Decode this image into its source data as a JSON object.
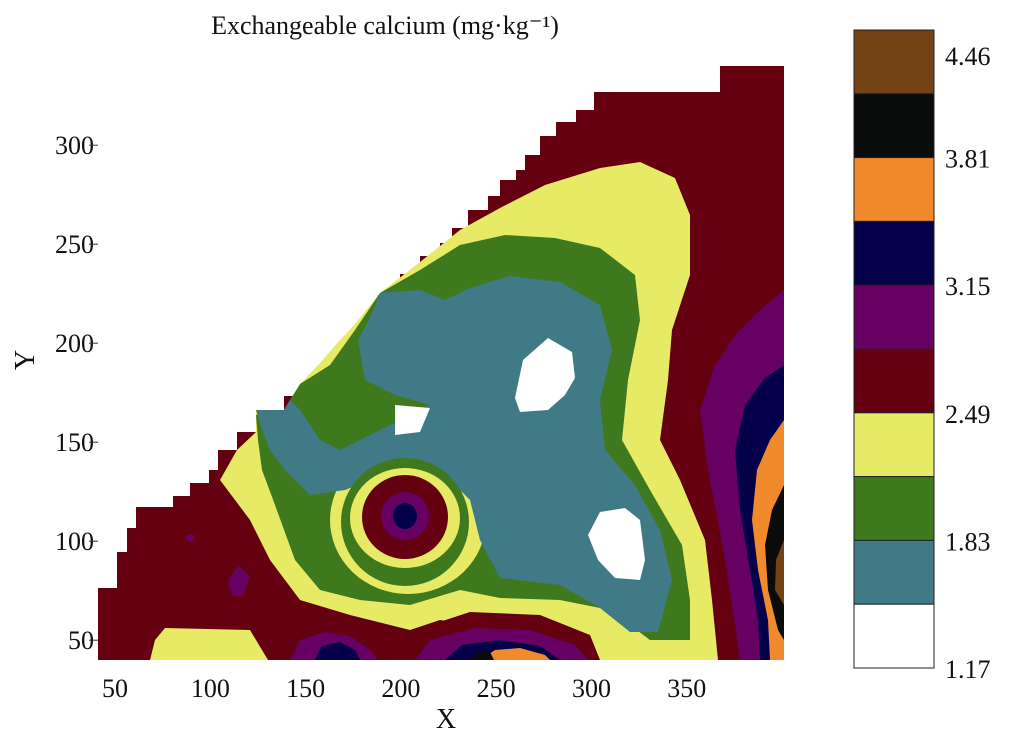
{
  "chart_data": {
    "type": "heatmap",
    "subtype": "filled-contour",
    "title": "Exchangeable calcium (mg·kg⁻¹)",
    "xlabel": "X",
    "ylabel": "Y",
    "xlim": [
      40,
      400
    ],
    "ylim": [
      40,
      340
    ],
    "xticks": [
      50,
      100,
      150,
      200,
      250,
      300,
      350
    ],
    "yticks": [
      50,
      100,
      150,
      200,
      250,
      300
    ],
    "legend_placement": "right",
    "levels": [
      {
        "color": "#ffffff",
        "name": "1.17–1.50"
      },
      {
        "color": "#3f7a86",
        "name": "1.50–1.83"
      },
      {
        "color": "#3e7a1d",
        "name": "1.83–2.16"
      },
      {
        "color": "#e7ea64",
        "name": "2.16–2.49"
      },
      {
        "color": "#640010",
        "name": "2.49–2.82"
      },
      {
        "color": "#660063",
        "name": "2.82–3.15"
      },
      {
        "color": "#04004a",
        "name": "3.15–3.48"
      },
      {
        "color": "#f08a2c",
        "name": "3.48–3.81"
      },
      {
        "color": "#0a0c0c",
        "name": "3.81–4.13"
      },
      {
        "color": "#744315",
        "name": "4.13–4.46"
      }
    ],
    "legend_tick_labels": [
      "4.46",
      "3.81",
      "3.15",
      "2.49",
      "1.83",
      "1.17"
    ]
  }
}
